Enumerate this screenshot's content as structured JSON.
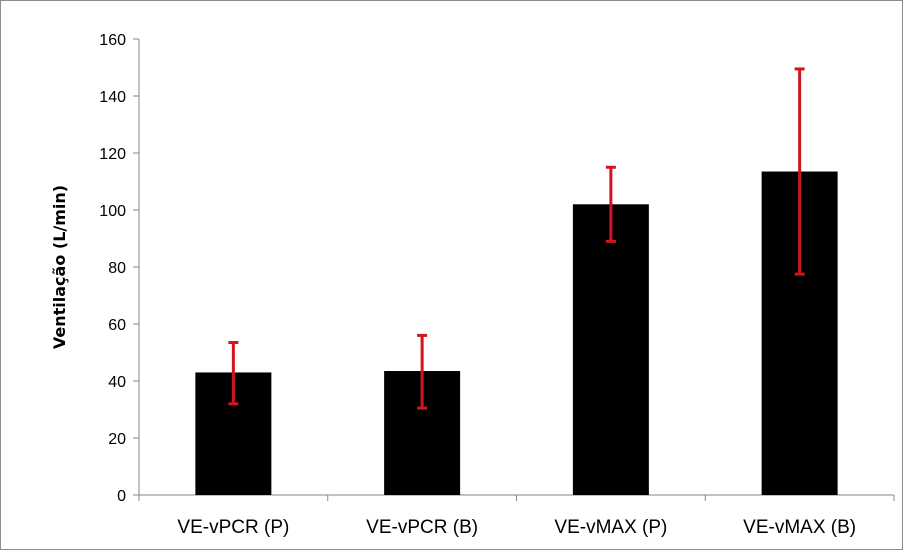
{
  "chart_data": {
    "type": "bar",
    "title": "",
    "xlabel": "",
    "ylabel": "Ventilação (L/min)",
    "ylim": [
      0,
      160
    ],
    "yticks": [
      0,
      20,
      40,
      60,
      80,
      100,
      120,
      140,
      160
    ],
    "categories": [
      "VE-vPCR (P)",
      "VE-vPCR (B)",
      "VE-vMAX (P)",
      "VE-vMAX (B)"
    ],
    "values": [
      43,
      43.5,
      102,
      113.5
    ],
    "error_bars": [
      {
        "low": 32,
        "high": 53.5
      },
      {
        "low": 30.5,
        "high": 56
      },
      {
        "low": 89,
        "high": 115
      },
      {
        "low": 77.5,
        "high": 149.5
      }
    ],
    "grid": false,
    "legend": "none",
    "bar_color": "#000000",
    "error_color": "#d0151b",
    "axis_color": "#868686"
  }
}
